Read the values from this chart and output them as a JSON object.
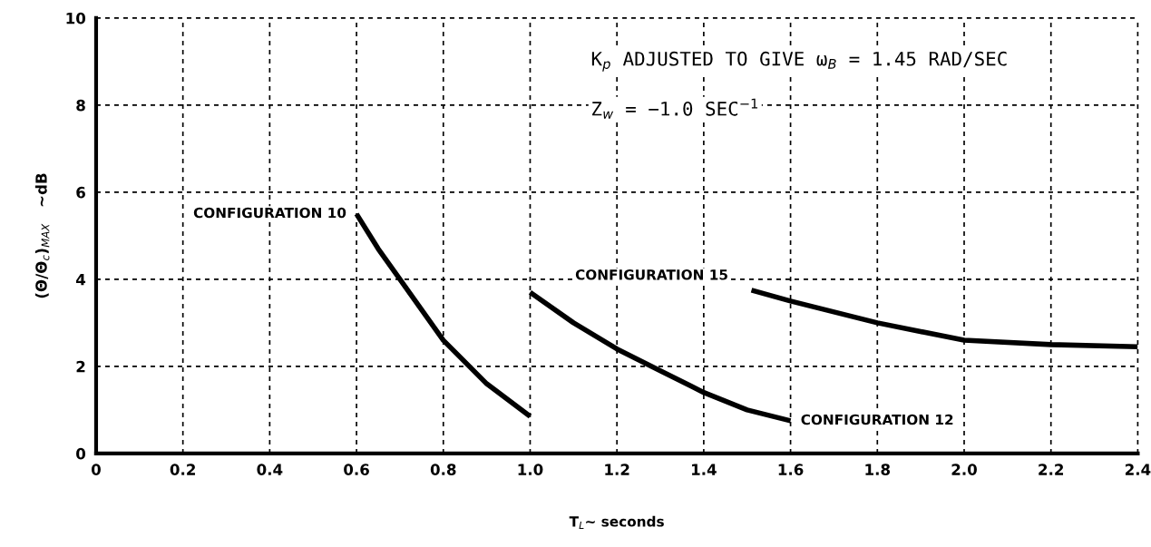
{
  "chart_data": {
    "type": "line",
    "xlabel": "T$_{L}$∼ seconds",
    "ylabel": "(Θ/Θ$_{c}$)$_{MAX}$   ∼dB",
    "annotations": [
      "K$_{p}$ ADJUSTED TO GIVE ω$_{B}$ = 1.45 RAD/SEC",
      "Z$_{w}$ = −1.0 SEC$^{−1}$"
    ],
    "series": [
      {
        "name": "CONFIGURATION 10",
        "color": "#000000",
        "x": [
          0.6,
          0.65,
          0.7,
          0.8,
          0.9,
          1.0
        ],
        "values": [
          5.5,
          4.7,
          4.0,
          2.6,
          1.6,
          0.85
        ]
      },
      {
        "name": "CONFIGURATION 12",
        "color": "#000000",
        "x": [
          1.0,
          1.1,
          1.2,
          1.3,
          1.4,
          1.5,
          1.6
        ],
        "values": [
          3.7,
          3.0,
          2.4,
          1.9,
          1.4,
          1.0,
          0.75
        ]
      },
      {
        "name": "CONFIGURATION 15",
        "color": "#000000",
        "x": [
          1.51,
          1.6,
          1.8,
          2.0,
          2.2,
          2.4
        ],
        "values": [
          3.75,
          3.5,
          3.0,
          2.6,
          2.5,
          2.45
        ]
      }
    ],
    "xlim": [
      0,
      2.4
    ],
    "ylim": [
      0,
      10
    ],
    "xticks": [
      0,
      0.2,
      0.4,
      0.6,
      0.8,
      {
        "value": 1,
        "label": "1.0"
      },
      1.2,
      1.4,
      1.6,
      1.8,
      {
        "value": 2,
        "label": "2.0"
      },
      2.2,
      2.4
    ],
    "yticks": [
      0,
      2,
      4,
      6,
      8,
      10
    ],
    "grid": true,
    "marker": "none",
    "line_style": "solid",
    "legend": false
  }
}
